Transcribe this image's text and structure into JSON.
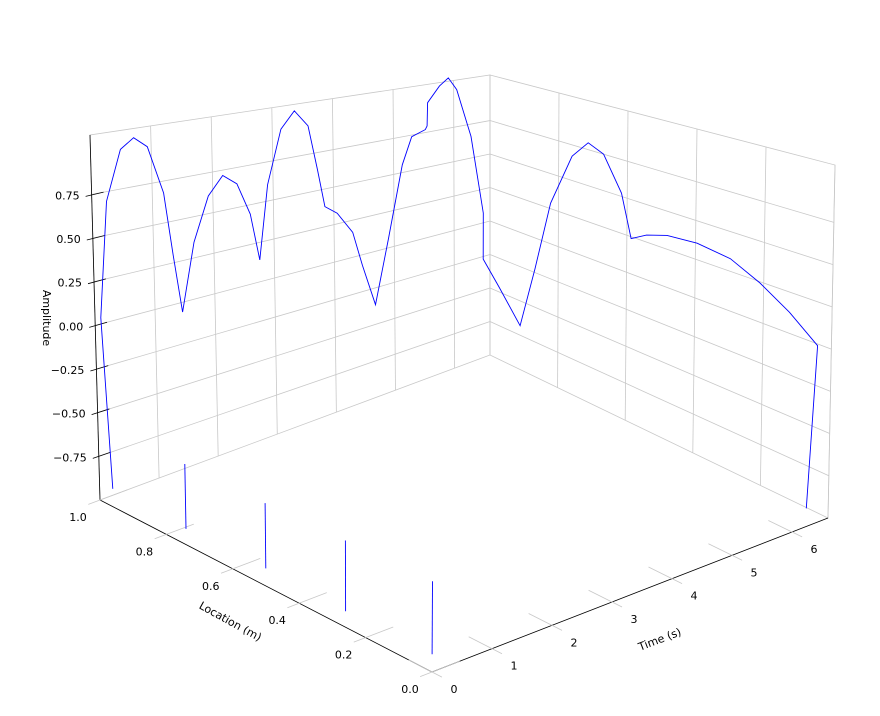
{
  "chart_data": {
    "type": "line3d",
    "xlabel": "Time (s)",
    "ylabel": "Location (m)",
    "zlabel": "Amplitude",
    "xlim": [
      0,
      6.6
    ],
    "ylim": [
      0,
      1
    ],
    "zlim": [
      -1,
      1.09
    ],
    "xticks": [
      0,
      1,
      2,
      3,
      4,
      5,
      6
    ],
    "yticks": [
      {
        "value": 0,
        "label": "0.0"
      },
      0.2,
      0.4,
      0.6,
      0.8,
      {
        "value": 1,
        "label": "1.0"
      }
    ],
    "zticks": [
      {
        "value": -0.75,
        "label": "−0.75"
      },
      {
        "value": -0.5,
        "label": "−0.50"
      },
      {
        "value": -0.25,
        "label": "−0.25"
      },
      {
        "value": 0,
        "label": "0.00"
      },
      0.25,
      {
        "value": 0.5,
        "label": "0.50"
      },
      0.75
    ],
    "grid": true,
    "series": [
      {
        "color": "#0000ff",
        "x": [
          0.11,
          0.04,
          0.13,
          0.27,
          0.38,
          0.49,
          0.63,
          0.71,
          0.79,
          0.89,
          1.03,
          1.16,
          1.28,
          1.38,
          1.47,
          1.56,
          1.68,
          1.79,
          1.9,
          1.99,
          2.05,
          2.14,
          2.28,
          2.38,
          2.48,
          2.59,
          2.71,
          2.81,
          2.92,
          2.95,
          2.96,
          3.04,
          3.13,
          3.21,
          3.33,
          3.42,
          3.42,
          3.57,
          3.75,
          3.88,
          4.02,
          4.2,
          4.35,
          4.49,
          4.62,
          4.73,
          4.87,
          5.04,
          5.31,
          5.58,
          5.85,
          6.12,
          6.37,
          6.29,
          null,
          0,
          0,
          null,
          0,
          0,
          null,
          0,
          0,
          null,
          0,
          0
        ],
        "y": [
          0.98,
          0.99,
          0.98,
          0.96,
          0.94,
          0.92,
          0.9,
          0.89,
          0.88,
          0.86,
          0.84,
          0.82,
          0.8,
          0.78,
          0.77,
          0.76,
          0.74,
          0.72,
          0.7,
          0.69,
          0.68,
          0.66,
          0.64,
          0.63,
          0.61,
          0.59,
          0.57,
          0.56,
          0.54,
          0.54,
          0.54,
          0.52,
          0.51,
          0.5,
          0.48,
          0.46,
          0.46,
          0.44,
          0.41,
          0.39,
          0.37,
          0.34,
          0.32,
          0.3,
          0.27,
          0.26,
          0.24,
          0.21,
          0.17,
          0.12,
          0.08,
          0.04,
          0.0,
          0.01,
          null,
          0.74,
          0.74,
          null,
          0.5,
          0.5,
          null,
          0.26,
          0.26,
          null,
          0.0,
          0.0
        ],
        "z": [
          -0.93,
          0.05,
          0.72,
          1.03,
          1.11,
          1.07,
          0.81,
          0.45,
          0.12,
          0.54,
          0.82,
          0.95,
          0.91,
          0.74,
          0.47,
          0.92,
          1.26,
          1.38,
          1.3,
          1.04,
          0.82,
          0.79,
          0.68,
          0.48,
          0.25,
          0.66,
          1.11,
          1.28,
          1.33,
          1.35,
          1.49,
          1.6,
          1.65,
          1.58,
          1.3,
          0.84,
          0.56,
          0.39,
          0.16,
          0.51,
          0.91,
          1.2,
          1.28,
          1.21,
          0.98,
          0.7,
          0.72,
          0.72,
          0.67,
          0.58,
          0.43,
          0.25,
          0.05,
          -0.91,
          null,
          -0.91,
          -0.54,
          null,
          -0.9,
          -0.53,
          null,
          -0.91,
          -0.51,
          null,
          -0.9,
          -0.49
        ]
      }
    ]
  }
}
